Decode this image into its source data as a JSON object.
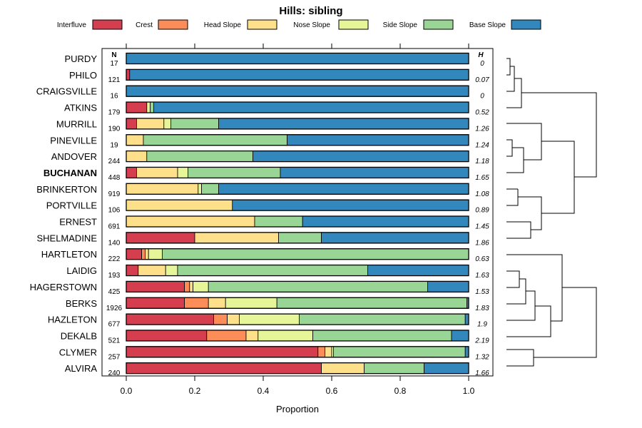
{
  "chart_data": {
    "type": "bar",
    "stacked": true,
    "orientation": "horizontal",
    "title": "Hills: sibling",
    "xlabel": "Proportion",
    "ylabel": "",
    "xlim": [
      0,
      1
    ],
    "x_ticks": [
      "0.0",
      "0.2",
      "0.4",
      "0.6",
      "0.8",
      "1.0"
    ],
    "x_tick_values": [
      0,
      0.2,
      0.4,
      0.6,
      0.8,
      1.0
    ],
    "legend_position": "top",
    "series": [
      {
        "name": "Interfluve",
        "color": "#D53E4F"
      },
      {
        "name": "Crest",
        "color": "#FC8D59"
      },
      {
        "name": "Head Slope",
        "color": "#FEE08B"
      },
      {
        "name": "Nose Slope",
        "color": "#E6F598"
      },
      {
        "name": "Side Slope",
        "color": "#99D594"
      },
      {
        "name": "Base Slope",
        "color": "#3288BD"
      }
    ],
    "n_header": "N",
    "h_header": "H",
    "highlight": "BUCHANAN",
    "rows": [
      {
        "name": "PURDY",
        "n": "17",
        "h": "0",
        "values": [
          0,
          0,
          0,
          0,
          0,
          1.0
        ]
      },
      {
        "name": "PHILO",
        "n": "121",
        "h": "0.07",
        "values": [
          0.01,
          0,
          0,
          0,
          0,
          0.99
        ]
      },
      {
        "name": "CRAIGSVILLE",
        "n": "16",
        "h": "0",
        "values": [
          0,
          0,
          0,
          0,
          0,
          1.0
        ]
      },
      {
        "name": "ATKINS",
        "n": "179",
        "h": "0.52",
        "values": [
          0.06,
          0,
          0,
          0.01,
          0.01,
          0.92
        ]
      },
      {
        "name": "MURRILL",
        "n": "190",
        "h": "1.26",
        "values": [
          0.03,
          0,
          0.08,
          0.02,
          0.14,
          0.73
        ]
      },
      {
        "name": "PINEVILLE",
        "n": "19",
        "h": "1.24",
        "values": [
          0,
          0,
          0.05,
          0,
          0.42,
          0.53
        ]
      },
      {
        "name": "ANDOVER",
        "n": "244",
        "h": "1.18",
        "values": [
          0,
          0,
          0.06,
          0,
          0.31,
          0.63
        ]
      },
      {
        "name": "BUCHANAN",
        "n": "448",
        "h": "1.65",
        "values": [
          0.03,
          0,
          0.12,
          0.03,
          0.27,
          0.55
        ]
      },
      {
        "name": "BRINKERTON",
        "n": "919",
        "h": "1.08",
        "values": [
          0,
          0,
          0.21,
          0.01,
          0.05,
          0.73
        ]
      },
      {
        "name": "PORTVILLE",
        "n": "106",
        "h": "0.89",
        "values": [
          0,
          0,
          0.31,
          0,
          0,
          0.69
        ]
      },
      {
        "name": "ERNEST",
        "n": "691",
        "h": "1.45",
        "values": [
          0,
          0,
          0.375,
          0,
          0.14,
          0.485
        ]
      },
      {
        "name": "SHELMADINE",
        "n": "140",
        "h": "1.86",
        "values": [
          0.2,
          0,
          0.245,
          0,
          0.125,
          0.43
        ]
      },
      {
        "name": "HARTLETON",
        "n": "222",
        "h": "0.63",
        "values": [
          0.045,
          0.01,
          0.01,
          0.04,
          0.895,
          0
        ]
      },
      {
        "name": "LAIDIG",
        "n": "193",
        "h": "1.63",
        "values": [
          0.035,
          0,
          0.08,
          0.035,
          0.555,
          0.295
        ]
      },
      {
        "name": "HAGERSTOWN",
        "n": "425",
        "h": "1.53",
        "values": [
          0.17,
          0.015,
          0.01,
          0.045,
          0.64,
          0.12
        ]
      },
      {
        "name": "BERKS",
        "n": "1926",
        "h": "1.83",
        "values": [
          0.17,
          0.07,
          0.05,
          0.15,
          0.555,
          0.005
        ]
      },
      {
        "name": "HAZLETON",
        "n": "677",
        "h": "1.9",
        "values": [
          0.255,
          0.04,
          0.035,
          0.175,
          0.485,
          0.01
        ]
      },
      {
        "name": "DEKALB",
        "n": "521",
        "h": "2.19",
        "values": [
          0.235,
          0.115,
          0.035,
          0.16,
          0.405,
          0.05
        ]
      },
      {
        "name": "CLYMER",
        "n": "257",
        "h": "1.32",
        "values": [
          0.56,
          0.02,
          0.02,
          0.005,
          0.385,
          0.01
        ]
      },
      {
        "name": "ALVIRA",
        "n": "240",
        "h": "1.66",
        "values": [
          0.57,
          0,
          0.125,
          0,
          0.175,
          0.13
        ]
      }
    ]
  }
}
